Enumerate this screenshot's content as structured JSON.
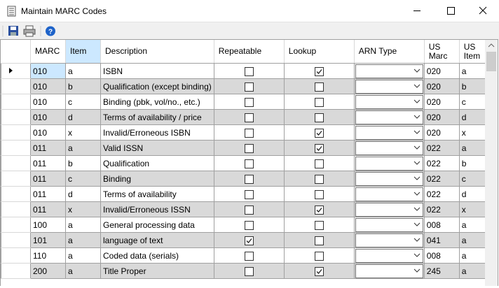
{
  "window": {
    "title": "Maintain MARC Codes"
  },
  "grid": {
    "columns": [
      "MARC",
      "Item",
      "Description",
      "Repeatable",
      "Lookup",
      "ARN Type",
      "US Marc",
      "US Item"
    ],
    "rows": [
      {
        "marc": "010",
        "item": "a",
        "description": "ISBN",
        "repeatable": false,
        "lookup": true,
        "us_marc": "020",
        "us_item": "a"
      },
      {
        "marc": "010",
        "item": "b",
        "description": "Qualification (except binding)",
        "repeatable": false,
        "lookup": false,
        "us_marc": "020",
        "us_item": "b"
      },
      {
        "marc": "010",
        "item": "c",
        "description": "Binding (pbk, vol/no., etc.)",
        "repeatable": false,
        "lookup": false,
        "us_marc": "020",
        "us_item": "c"
      },
      {
        "marc": "010",
        "item": "d",
        "description": "Terms of availability / price",
        "repeatable": false,
        "lookup": false,
        "us_marc": "020",
        "us_item": "d"
      },
      {
        "marc": "010",
        "item": "x",
        "description": "Invalid/Erroneous ISBN",
        "repeatable": false,
        "lookup": true,
        "us_marc": "020",
        "us_item": "x"
      },
      {
        "marc": "011",
        "item": "a",
        "description": "Valid ISSN",
        "repeatable": false,
        "lookup": true,
        "us_marc": "022",
        "us_item": "a"
      },
      {
        "marc": "011",
        "item": "b",
        "description": "Qualification",
        "repeatable": false,
        "lookup": false,
        "us_marc": "022",
        "us_item": "b"
      },
      {
        "marc": "011",
        "item": "c",
        "description": "Binding",
        "repeatable": false,
        "lookup": false,
        "us_marc": "022",
        "us_item": "c"
      },
      {
        "marc": "011",
        "item": "d",
        "description": "Terms of availability",
        "repeatable": false,
        "lookup": false,
        "us_marc": "022",
        "us_item": "d"
      },
      {
        "marc": "011",
        "item": "x",
        "description": "Invalid/Erroneous ISSN",
        "repeatable": false,
        "lookup": true,
        "us_marc": "022",
        "us_item": "x"
      },
      {
        "marc": "100",
        "item": "a",
        "description": "General processing data",
        "repeatable": false,
        "lookup": false,
        "us_marc": "008",
        "us_item": "a"
      },
      {
        "marc": "101",
        "item": "a",
        "description": "language of text",
        "repeatable": true,
        "lookup": false,
        "us_marc": "041",
        "us_item": "a"
      },
      {
        "marc": "110",
        "item": "a",
        "description": "Coded data (serials)",
        "repeatable": false,
        "lookup": false,
        "us_marc": "008",
        "us_item": "a"
      },
      {
        "marc": "200",
        "item": "a",
        "description": "Title Proper",
        "repeatable": false,
        "lookup": true,
        "us_marc": "245",
        "us_item": "a"
      }
    ]
  }
}
